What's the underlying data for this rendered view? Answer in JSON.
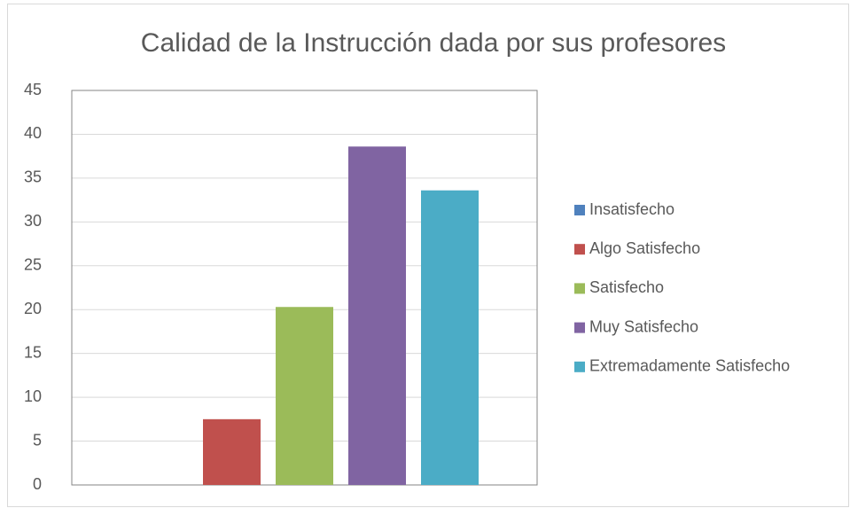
{
  "chart_data": {
    "type": "bar",
    "title": "Calidad de la Instrucción dada por sus profesores",
    "series": [
      {
        "name": "Insatisfecho",
        "color": "#4f81bd",
        "values": [
          0
        ]
      },
      {
        "name": "Algo Satisfecho",
        "color": "#c0504d",
        "values": [
          7.5
        ]
      },
      {
        "name": "Satisfecho",
        "color": "#9bbb59",
        "values": [
          20.3
        ]
      },
      {
        "name": "Muy Satisfecho",
        "color": "#8064a2",
        "values": [
          38.6
        ]
      },
      {
        "name": "Extremadamente Satisfecho",
        "color": "#4bacc6",
        "values": [
          33.6
        ]
      }
    ],
    "ylim": [
      0,
      45
    ],
    "yticks": [
      0,
      5,
      10,
      15,
      20,
      25,
      30,
      35,
      40,
      45
    ],
    "grid": true,
    "legend": "right"
  }
}
